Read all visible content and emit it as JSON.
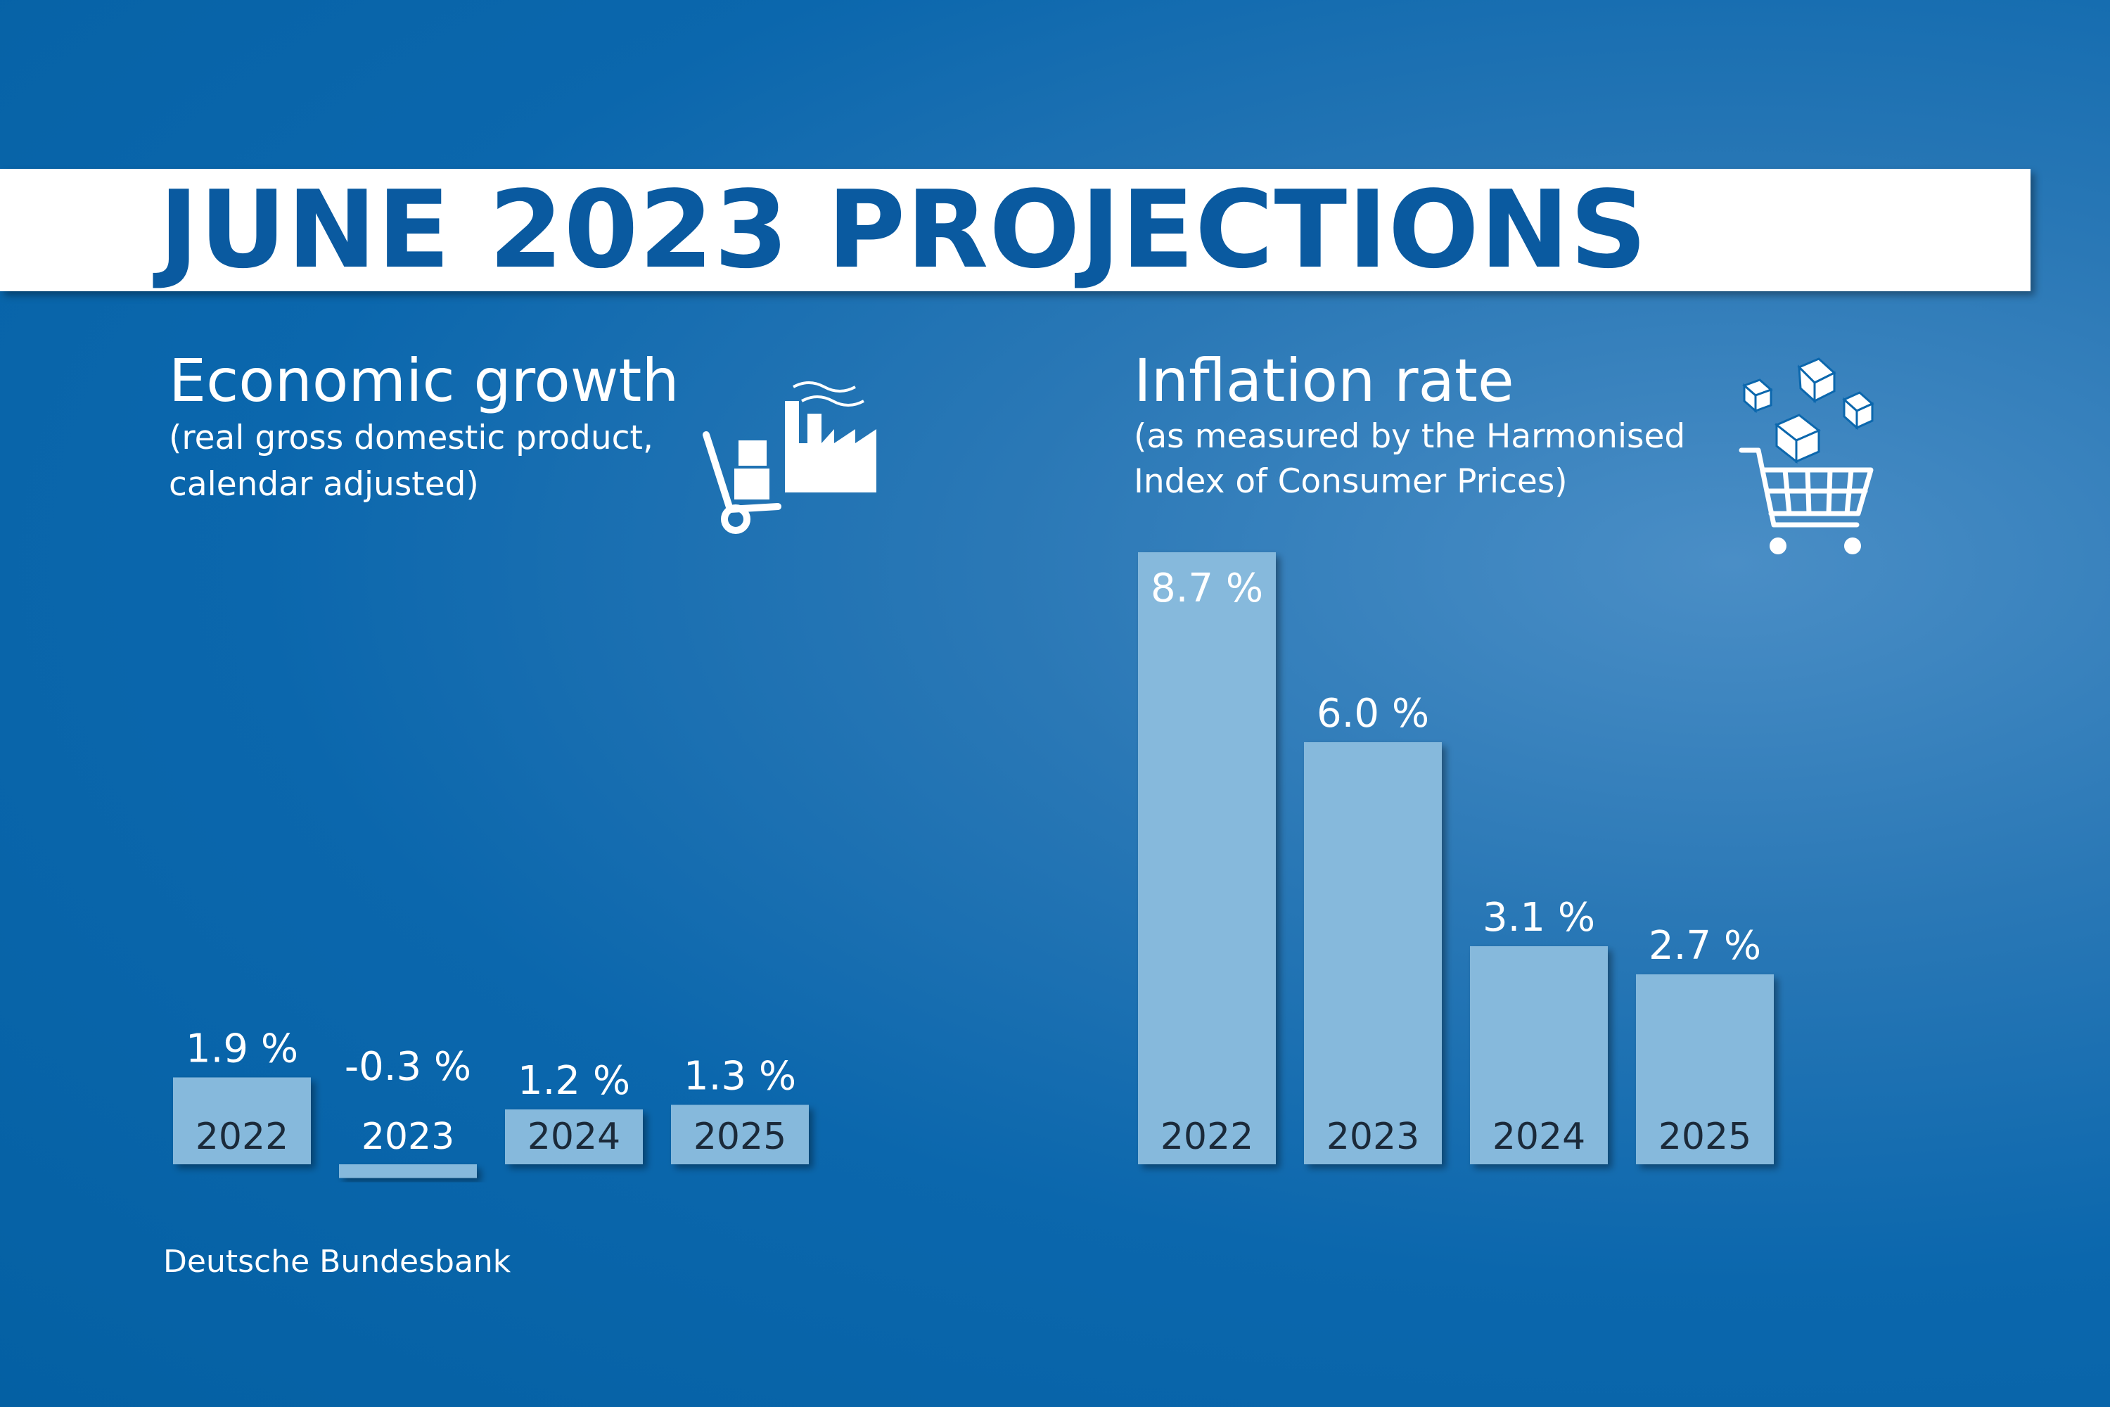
{
  "title": "JUNE 2023 PROJECTIONS",
  "source": "Deutsche Bundesbank",
  "colors": {
    "bar": "#86b9dc",
    "text": "#ffffff",
    "title": "#0a5aa0"
  },
  "icons": {
    "growth": "factory-trolley-icon",
    "inflation": "shopping-cart-icon"
  },
  "chart_data": [
    {
      "type": "bar",
      "title": "Economic growth",
      "subtitle": [
        "(real gross domestic product,",
        "calendar adjusted)"
      ],
      "categories": [
        "2022",
        "2023",
        "2024",
        "2025"
      ],
      "values": [
        1.9,
        -0.3,
        1.2,
        1.3
      ],
      "value_labels": [
        "1.9 %",
        "-0.3 %",
        "1.2 %",
        "1.3 %"
      ],
      "unit": "%"
    },
    {
      "type": "bar",
      "title": "Inflation rate",
      "subtitle": [
        "(as measured by the Harmonised",
        "Index of Consumer Prices)"
      ],
      "categories": [
        "2022",
        "2023",
        "2024",
        "2025"
      ],
      "values": [
        8.7,
        6.0,
        3.1,
        2.7
      ],
      "value_labels": [
        "8.7 %",
        "6.0 %",
        "3.1 %",
        "2.7 %"
      ],
      "unit": "%"
    }
  ]
}
